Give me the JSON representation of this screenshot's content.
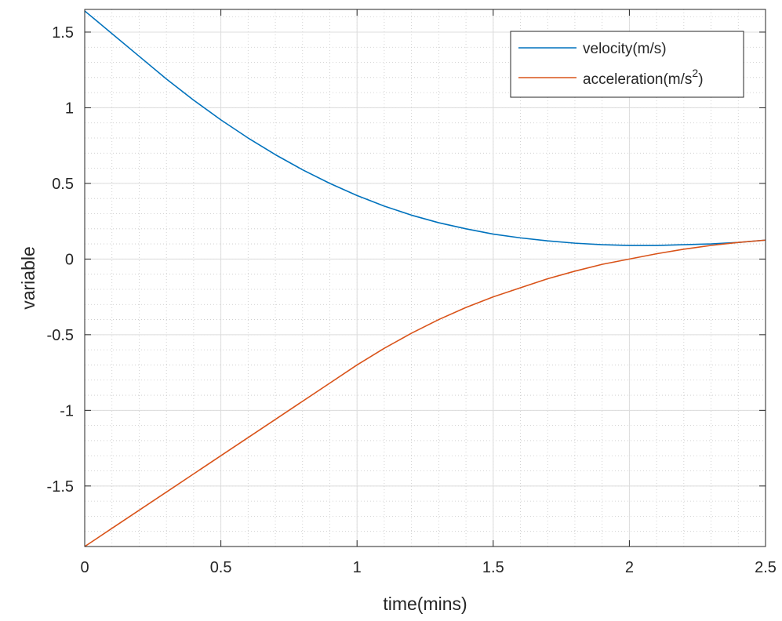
{
  "chart_data": {
    "type": "line",
    "xlabel": "time(mins)",
    "ylabel": "variable",
    "xlim": [
      0,
      2.5
    ],
    "ylim": [
      -1.9,
      1.65
    ],
    "xticks": [
      0,
      0.5,
      1,
      1.5,
      2,
      2.5
    ],
    "xtick_labels": [
      "0",
      "0.5",
      "1",
      "1.5",
      "2",
      "2.5"
    ],
    "yticks": [
      -1.5,
      -1,
      -0.5,
      0,
      0.5,
      1,
      1.5
    ],
    "ytick_labels": [
      "-1.5",
      "-1",
      "-0.5",
      "0",
      "0.5",
      "1",
      "1.5"
    ],
    "grid": "major and minor",
    "legend_position": "top-right",
    "legend": {
      "velocity": "velocity(m/s)",
      "acceleration_base": "acceleration(m/s",
      "acceleration_sup": "2",
      "acceleration_close": ")"
    },
    "x": [
      0,
      0.1,
      0.2,
      0.3,
      0.4,
      0.5,
      0.6,
      0.7,
      0.8,
      0.9,
      1.0,
      1.1,
      1.2,
      1.3,
      1.4,
      1.5,
      1.6,
      1.7,
      1.8,
      1.9,
      2.0,
      2.1,
      2.2,
      2.3,
      2.4,
      2.5
    ],
    "series": [
      {
        "name": "velocity(m/s)",
        "color": "#0072BD",
        "values": [
          1.64,
          1.49,
          1.34,
          1.19,
          1.05,
          0.92,
          0.8,
          0.69,
          0.59,
          0.5,
          0.42,
          0.35,
          0.29,
          0.24,
          0.2,
          0.165,
          0.14,
          0.12,
          0.105,
          0.095,
          0.09,
          0.09,
          0.095,
          0.1,
          0.11,
          0.125
        ]
      },
      {
        "name": "acceleration(m/s^2)",
        "color": "#D95319",
        "values": [
          -1.9,
          -1.78,
          -1.66,
          -1.54,
          -1.42,
          -1.3,
          -1.18,
          -1.06,
          -0.94,
          -0.82,
          -0.7,
          -0.59,
          -0.49,
          -0.4,
          -0.32,
          -0.25,
          -0.19,
          -0.13,
          -0.08,
          -0.035,
          0.0,
          0.035,
          0.065,
          0.09,
          0.11,
          0.125
        ]
      }
    ]
  }
}
